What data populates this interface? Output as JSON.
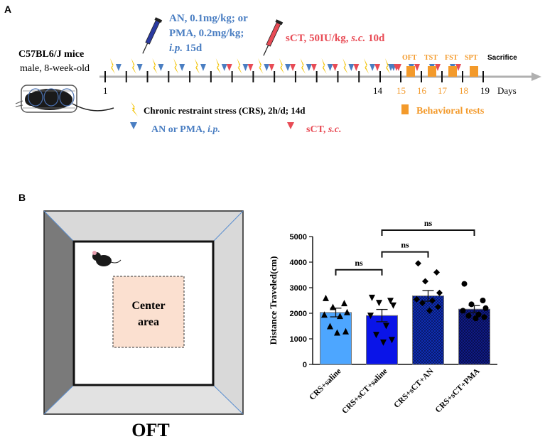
{
  "panel_a": {
    "letter": "A",
    "mice_label": "C57BL6/J mice",
    "mice_sub": "male, 8-week-old",
    "an_line1": "AN, 0.1mg/kg; or",
    "an_line2": "PMA, 0.2mg/kg;",
    "an_ip": "i.p.",
    "an_days": " 15d",
    "sct_main": "sCT, 50IU/kg, ",
    "sct_sc": "s.c.",
    "sct_days": " 10d",
    "day_1": "1",
    "day_14": "14",
    "day_15": "15",
    "day_16": "16",
    "day_17": "17",
    "day_18": "18",
    "day_19": "19",
    "days_label": "Days",
    "test_oft": "OFT",
    "test_tst": "TST",
    "test_fst": "FST",
    "test_spt": "SPT",
    "sacrifice": "Sacrifice",
    "legend_crs": "Chronic restraint stress (CRS), 2h/d; 14d",
    "legend_an": "AN or PMA, ",
    "legend_an_ip": "i.p.",
    "legend_sct": "sCT, ",
    "legend_sct_sc": "s.c.",
    "legend_behavior": "Behavioral tests",
    "colors": {
      "blue": "#4a7ec2",
      "red": "#e84b55",
      "orange": "#f39a2b",
      "yellow": "#f2c200"
    }
  },
  "panel_b": {
    "letter": "B",
    "center_line1": "Center",
    "center_line2": "area",
    "oft_title": "OFT"
  },
  "chart_data": {
    "type": "bar",
    "ylabel": "Distance Traveled(cm)",
    "ylim": [
      0,
      5000
    ],
    "yticks": [
      0,
      1000,
      2000,
      3000,
      4000,
      5000
    ],
    "categories": [
      "CRS+saline",
      "CRS+sCT+saline",
      "CRS+sCT+AN",
      "CRS+sCT+PMA"
    ],
    "values": [
      2030,
      1910,
      2680,
      2160
    ],
    "errors": [
      170,
      240,
      210,
      140
    ],
    "colors": [
      "#4da6ff",
      "#0a14e8",
      "#1030c0",
      "#101c90"
    ],
    "points": [
      [
        2600,
        2400,
        2250,
        2050,
        1950,
        1900,
        1500,
        1300,
        1250
      ],
      [
        2600,
        2480,
        2400,
        2300,
        1900,
        1500,
        1150,
        950,
        850
      ],
      [
        3950,
        3600,
        3250,
        2800,
        2550,
        2500,
        2400,
        2250,
        2100
      ],
      [
        3150,
        2500,
        2350,
        2200,
        2100,
        1950,
        1900,
        1850,
        1800
      ]
    ],
    "markers": [
      "triangle-up",
      "triangle-down",
      "diamond",
      "circle"
    ],
    "comparisons": [
      {
        "from": 0,
        "to": 1,
        "label": "ns"
      },
      {
        "from": 1,
        "to": 2,
        "label": "ns"
      },
      {
        "from": 1,
        "to": 3,
        "label": "ns"
      }
    ]
  }
}
